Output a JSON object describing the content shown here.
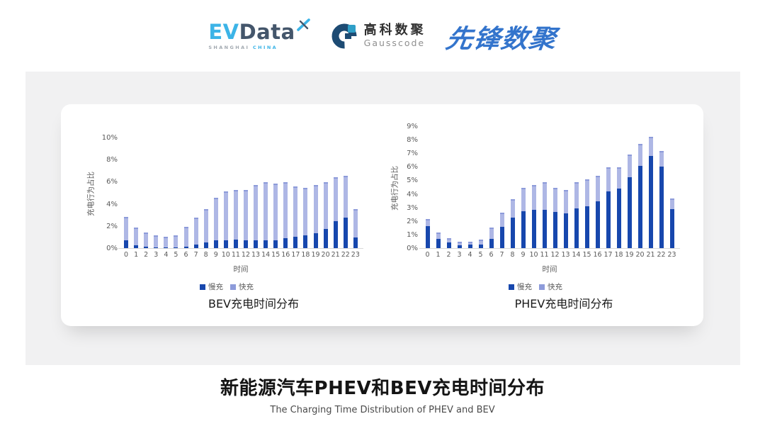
{
  "header": {
    "evdata_logo": {
      "ev": "EV",
      "data": "Data",
      "sub_shanghai": "SHANGHAI",
      "sub_china": "CHINA"
    },
    "gausscode_logo": {
      "name_cn": "高科数聚",
      "name_en": "Gausscode"
    },
    "pioneer_logo": {
      "text": "先锋数聚"
    }
  },
  "colors": {
    "slow_charge": "#1747AD",
    "fast_charge": "#AEB7E5",
    "fast_charge_cap": "#8D9BDA",
    "axis_text": "#595959",
    "baseline": "#D9D9D9",
    "panel_bg": "#F1F1F2",
    "evdata_blue": "#3CB4E7",
    "evdata_dark": "#44566B",
    "gauss_dark": "#1D4B73",
    "gauss_teal": "#2E9FC8",
    "pioneer_blue": "#3374CC"
  },
  "chart_data": [
    {
      "type": "bar",
      "stacked": true,
      "title": "BEV充电时间分布",
      "ylabel": "充电行为占比",
      "xlabel": "时间",
      "legend_position": "bottom",
      "grid": false,
      "ylim": [
        0,
        10
      ],
      "yticks": [
        0,
        2,
        4,
        6,
        8,
        10
      ],
      "tick_suffix": "%",
      "x": [
        "0",
        "1",
        "2",
        "3",
        "4",
        "5",
        "6",
        "7",
        "8",
        "9",
        "10",
        "11",
        "12",
        "13",
        "14",
        "15",
        "16",
        "17",
        "18",
        "19",
        "20",
        "21",
        "22",
        "23"
      ],
      "series": [
        {
          "name": "慢充",
          "values": [
            0.75,
            0.35,
            0.2,
            0.12,
            0.12,
            0.12,
            0.2,
            0.4,
            0.55,
            0.75,
            0.8,
            0.85,
            0.75,
            0.8,
            0.8,
            0.8,
            0.95,
            1.1,
            1.2,
            1.4,
            1.8,
            2.5,
            2.85,
            1.0
          ]
        },
        {
          "name": "快充",
          "values": [
            2.15,
            1.55,
            1.3,
            1.08,
            0.98,
            1.08,
            1.8,
            2.4,
            3.05,
            3.85,
            4.4,
            4.45,
            4.55,
            5.0,
            5.2,
            5.1,
            5.05,
            4.55,
            4.3,
            4.35,
            4.25,
            4.0,
            3.75,
            2.6
          ]
        }
      ]
    },
    {
      "type": "bar",
      "stacked": true,
      "title": "PHEV充电时间分布",
      "ylabel": "充电行为占比",
      "xlabel": "时间",
      "legend_position": "bottom",
      "grid": false,
      "ylim": [
        0,
        9
      ],
      "yticks": [
        0,
        1,
        2,
        3,
        4,
        5,
        6,
        7,
        8,
        9
      ],
      "tick_suffix": "%",
      "x": [
        "0",
        "1",
        "2",
        "3",
        "4",
        "5",
        "6",
        "7",
        "8",
        "9",
        "10",
        "11",
        "12",
        "13",
        "14",
        "15",
        "16",
        "17",
        "18",
        "19",
        "20",
        "21",
        "22",
        "23"
      ],
      "series": [
        {
          "name": "慢充",
          "values": [
            1.7,
            0.75,
            0.45,
            0.25,
            0.3,
            0.3,
            0.75,
            1.6,
            2.3,
            2.8,
            2.9,
            2.9,
            2.7,
            2.6,
            3.0,
            3.15,
            3.5,
            4.25,
            4.45,
            5.3,
            6.1,
            6.85,
            6.05,
            2.95
          ]
        },
        {
          "name": "快充",
          "values": [
            0.5,
            0.45,
            0.35,
            0.3,
            0.25,
            0.4,
            0.85,
            1.05,
            1.35,
            1.7,
            1.8,
            2.0,
            1.8,
            1.75,
            1.9,
            2.0,
            1.9,
            1.75,
            1.55,
            1.65,
            1.65,
            1.4,
            1.2,
            0.75
          ]
        }
      ]
    }
  ],
  "footer": {
    "title": "新能源汽车PHEV和BEV充电时间分布",
    "subtitle": "The Charging Time Distribution of PHEV and BEV"
  }
}
